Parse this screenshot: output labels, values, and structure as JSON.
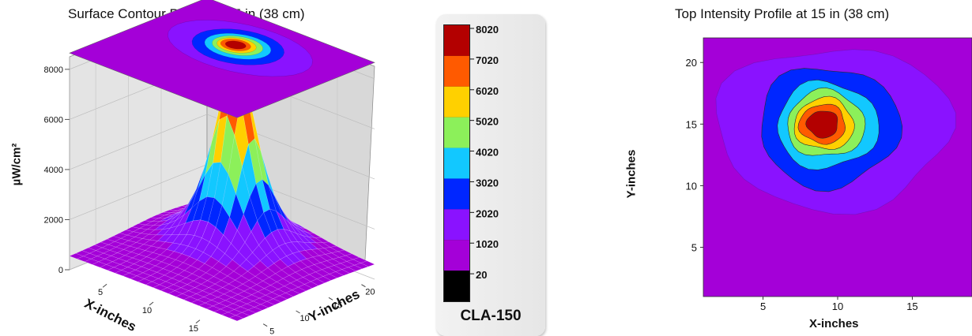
{
  "chart_data": [
    {
      "type": "surface",
      "title": "Surface Contour Profile at 15 in (38 cm)",
      "xlabel": "X-inches",
      "ylabel": "Y-inches",
      "zlabel": "µW/cm²",
      "x_ticks": [
        "5",
        "10",
        "15"
      ],
      "y_ticks": [
        "5",
        "10",
        "15",
        "20"
      ],
      "z_ticks": [
        "0",
        "2000",
        "4000",
        "6000",
        "8000"
      ],
      "zlim": [
        0,
        8500
      ],
      "peak": {
        "x": 9,
        "y": 15,
        "value": 8020
      },
      "base_value": 500,
      "grid": true
    },
    {
      "type": "legend",
      "title": "CLA-150",
      "levels": [
        {
          "label": "8020",
          "color": "#b30000"
        },
        {
          "label": "7020",
          "color": "#ff5a00"
        },
        {
          "label": "6020",
          "color": "#ffd000"
        },
        {
          "label": "5020",
          "color": "#8cf05a"
        },
        {
          "label": "4020",
          "color": "#12c8ff"
        },
        {
          "label": "3020",
          "color": "#0026ff"
        },
        {
          "label": "2020",
          "color": "#8a12ff"
        },
        {
          "label": "1020",
          "color": "#a400d8"
        },
        {
          "label": "20",
          "color": "#000000"
        }
      ]
    },
    {
      "type": "heatmap",
      "title": "Top Intensity Profile at 15 in (38 cm)",
      "xlabel": "X-inches",
      "ylabel": "Y-inches",
      "x_ticks": [
        "5",
        "10",
        "15"
      ],
      "y_ticks": [
        "5",
        "10",
        "15",
        "20"
      ],
      "xlim": [
        1,
        19
      ],
      "ylim": [
        1,
        22
      ],
      "contours": [
        {
          "level": 1020,
          "color": "#8a12ff",
          "center": [
            9.7,
            14.7
          ],
          "rx": 7.9,
          "ry": 6.6
        },
        {
          "level": 2020,
          "color": "#0026ff",
          "center": [
            9.4,
            14.8
          ],
          "rx": 4.7,
          "ry": 4.9
        },
        {
          "level": 3020,
          "color": "#12c8ff",
          "center": [
            9.3,
            14.9
          ],
          "rx": 3.4,
          "ry": 3.5
        },
        {
          "level": 4020,
          "color": "#8cf05a",
          "center": [
            9.2,
            15.0
          ],
          "rx": 2.6,
          "ry": 2.7
        },
        {
          "level": 5020,
          "color": "#ffd000",
          "center": [
            9.1,
            15.0
          ],
          "rx": 2.0,
          "ry": 2.1
        },
        {
          "level": 6020,
          "color": "#ff5a00",
          "center": [
            9.0,
            15.0
          ],
          "rx": 1.55,
          "ry": 1.6
        },
        {
          "level": 7020,
          "color": "#b30000",
          "center": [
            9.0,
            15.0
          ],
          "rx": 1.05,
          "ry": 1.1
        }
      ],
      "background_color": "#a400d8"
    }
  ]
}
